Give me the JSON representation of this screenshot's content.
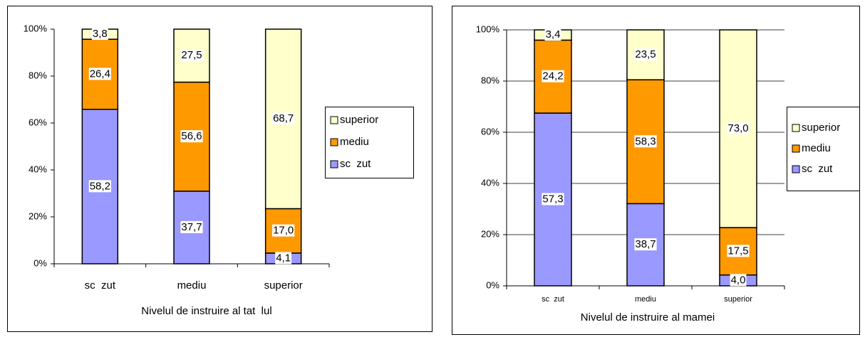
{
  "chart_data": [
    {
      "type": "bar",
      "stacked": "percent",
      "xlabel": "Nivelul de instruire al tat  lul",
      "categories": [
        "sc  zut",
        "mediu",
        "superior"
      ],
      "series": [
        {
          "name": "sc  zut",
          "color": "#9999ff",
          "values": [
            58.2,
            37.7,
            4.1
          ],
          "value_labels": [
            "58,2",
            "37,7",
            "4,1"
          ]
        },
        {
          "name": "mediu",
          "color": "#ff9900",
          "values": [
            26.4,
            56.6,
            17.0
          ],
          "value_labels": [
            "26,4",
            "56,6",
            "17,0"
          ]
        },
        {
          "name": "superior",
          "color": "#ffffcc",
          "values": [
            3.8,
            27.5,
            68.7
          ],
          "value_labels": [
            "3,8",
            "27,5",
            "68,7"
          ]
        }
      ],
      "ylim": [
        0,
        100
      ],
      "yticks": [
        {
          "value": 0,
          "label": "0%"
        },
        {
          "value": 20,
          "label": "20%"
        },
        {
          "value": 40,
          "label": "40%"
        },
        {
          "value": 60,
          "label": "60%"
        },
        {
          "value": 80,
          "label": "80%"
        },
        {
          "value": 100,
          "label": "100%"
        }
      ],
      "grid": false,
      "legend": "right"
    },
    {
      "type": "bar",
      "stacked": "percent",
      "xlabel": "Nivelul de instruire al mamei",
      "categories": [
        "sc  zut",
        "mediu",
        "superior"
      ],
      "series": [
        {
          "name": "sc  zut",
          "color": "#9999ff",
          "values": [
            57.3,
            38.7,
            4.0
          ],
          "value_labels": [
            "57,3",
            "38,7",
            "4,0"
          ]
        },
        {
          "name": "mediu",
          "color": "#ff9900",
          "values": [
            24.2,
            58.3,
            17.5
          ],
          "value_labels": [
            "24,2",
            "58,3",
            "17,5"
          ]
        },
        {
          "name": "superior",
          "color": "#ffffcc",
          "values": [
            3.4,
            23.5,
            73.0
          ],
          "value_labels": [
            "3,4",
            "23,5",
            "73,0"
          ]
        }
      ],
      "ylim": [
        0,
        100
      ],
      "yticks": [
        {
          "value": 0,
          "label": "0%"
        },
        {
          "value": 20,
          "label": "20%"
        },
        {
          "value": 40,
          "label": "40%"
        },
        {
          "value": 60,
          "label": "60%"
        },
        {
          "value": 80,
          "label": "80%"
        },
        {
          "value": 100,
          "label": "100%"
        }
      ],
      "grid": true,
      "legend": "right"
    }
  ]
}
